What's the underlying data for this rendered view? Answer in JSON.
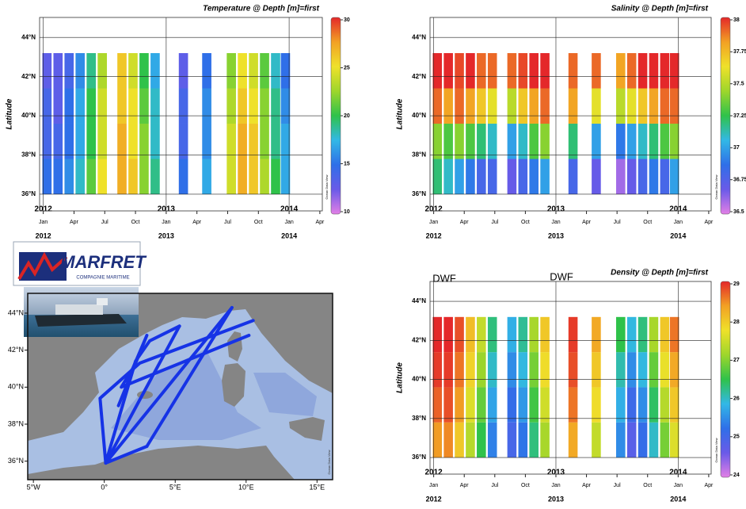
{
  "logo": {
    "name": "MARFRET",
    "tagline": "COMPAGNIE MARITIME"
  },
  "chart_data": [
    {
      "type": "heatmap",
      "title": "Temperature @ Depth [m]=first",
      "y_label": "Latitude",
      "watermark": "Ocean Data View",
      "xlim": [
        2011.97,
        2014.27
      ],
      "ylim": [
        35.15,
        45.02
      ],
      "grid": true,
      "xticks": [
        {
          "value": 2012,
          "label": "Jan"
        },
        {
          "value": 2012.25,
          "label": "Apr"
        },
        {
          "value": 2012.5,
          "label": "Jul"
        },
        {
          "value": 2012.75,
          "label": "Oct"
        },
        {
          "value": 2013,
          "label": "Jan"
        },
        {
          "value": 2013.25,
          "label": "Apr"
        },
        {
          "value": 2013.5,
          "label": "Jul"
        },
        {
          "value": 2013.75,
          "label": "Oct"
        },
        {
          "value": 2014,
          "label": "Jan"
        },
        {
          "value": 2014.25,
          "label": "Apr"
        }
      ],
      "year_ticks": [
        2012,
        2013,
        2014
      ],
      "yticks": [
        {
          "value": 36,
          "label": "36°N"
        },
        {
          "value": 38,
          "label": "38°N"
        },
        {
          "value": 40,
          "label": "40°N"
        },
        {
          "value": 42,
          "label": "42°N"
        },
        {
          "value": 44,
          "label": "44°N"
        }
      ],
      "colorbar_lim": [
        10,
        30
      ],
      "colorbar_ticks": [
        10,
        15,
        20,
        25,
        30
      ],
      "colormap": [
        "#e27fe6",
        "#6a5ae8",
        "#2f6fe8",
        "#32b8e6",
        "#2fc24a",
        "#9ed62b",
        "#efe12a",
        "#f2a124",
        "#e4282a"
      ],
      "x": [
        2012.03,
        2012.12,
        2012.21,
        2012.3,
        2012.39,
        2012.48,
        2012.64,
        2012.73,
        2012.82,
        2012.91,
        2013.14,
        2013.33,
        2013.53,
        2013.62,
        2013.71,
        2013.8,
        2013.89,
        2013.97
      ],
      "y": [
        36.9,
        38.7,
        40.5,
        42.3
      ],
      "values": [
        [
          15,
          14,
          14,
          13
        ],
        [
          15,
          14,
          13,
          13
        ],
        [
          16,
          15,
          15,
          14
        ],
        [
          18,
          17,
          17,
          16
        ],
        [
          21,
          20,
          20,
          19
        ],
        [
          25,
          24,
          24,
          23
        ],
        [
          27,
          27,
          26,
          26
        ],
        [
          26,
          25,
          25,
          24
        ],
        [
          22,
          22,
          21,
          20
        ],
        [
          19,
          18,
          18,
          17
        ],
        [
          15,
          14,
          14,
          13
        ],
        [
          17,
          16,
          16,
          15
        ],
        [
          24,
          24,
          23,
          22
        ],
        [
          27,
          27,
          26,
          25
        ],
        [
          26,
          26,
          25,
          24
        ],
        [
          23,
          22,
          22,
          21
        ],
        [
          20,
          19,
          19,
          18
        ],
        [
          17,
          17,
          16,
          15
        ]
      ]
    },
    {
      "type": "heatmap",
      "title": "Salinity @ Depth [m]=first",
      "y_label": "Latitude",
      "watermark": "Ocean Data View",
      "xlim": [
        2011.97,
        2014.27
      ],
      "ylim": [
        35.15,
        45.02
      ],
      "grid": true,
      "xticks": [
        {
          "value": 2012,
          "label": "Jan"
        },
        {
          "value": 2012.25,
          "label": "Apr"
        },
        {
          "value": 2012.5,
          "label": "Jul"
        },
        {
          "value": 2012.75,
          "label": "Oct"
        },
        {
          "value": 2013,
          "label": "Jan"
        },
        {
          "value": 2013.25,
          "label": "Apr"
        },
        {
          "value": 2013.5,
          "label": "Jul"
        },
        {
          "value": 2013.75,
          "label": "Oct"
        },
        {
          "value": 2014,
          "label": "Jan"
        },
        {
          "value": 2014.25,
          "label": "Apr"
        }
      ],
      "year_ticks": [
        2012,
        2013,
        2014
      ],
      "yticks": [
        {
          "value": 36,
          "label": "36°N"
        },
        {
          "value": 38,
          "label": "38°N"
        },
        {
          "value": 40,
          "label": "40°N"
        },
        {
          "value": 42,
          "label": "42°N"
        },
        {
          "value": 44,
          "label": "44°N"
        }
      ],
      "colorbar_lim": [
        36.5,
        38
      ],
      "colorbar_ticks": [
        36.5,
        36.75,
        37,
        37.25,
        37.5,
        37.75,
        38
      ],
      "colormap": [
        "#e27fe6",
        "#6a5ae8",
        "#2f6fe8",
        "#32b8e6",
        "#2fc24a",
        "#9ed62b",
        "#efe12a",
        "#f2a124",
        "#e4282a"
      ],
      "x": [
        2012.03,
        2012.12,
        2012.21,
        2012.3,
        2012.39,
        2012.48,
        2012.64,
        2012.73,
        2012.82,
        2012.91,
        2013.14,
        2013.33,
        2013.53,
        2013.62,
        2013.71,
        2013.8,
        2013.89,
        2013.97
      ],
      "y": [
        36.9,
        38.7,
        40.5,
        42.3
      ],
      "values": [
        [
          37.2,
          37.4,
          37.9,
          38.0
        ],
        [
          37.1,
          37.3,
          37.8,
          38.0
        ],
        [
          37.0,
          37.4,
          37.9,
          37.95
        ],
        [
          36.9,
          37.3,
          37.8,
          38.0
        ],
        [
          36.8,
          37.2,
          37.7,
          37.9
        ],
        [
          36.8,
          37.1,
          37.6,
          37.9
        ],
        [
          36.7,
          37.0,
          37.5,
          37.9
        ],
        [
          36.8,
          37.1,
          37.7,
          37.95
        ],
        [
          36.9,
          37.3,
          37.8,
          38.0
        ],
        [
          37.0,
          37.4,
          37.9,
          38.0
        ],
        [
          36.8,
          37.2,
          37.8,
          37.9
        ],
        [
          36.7,
          37.0,
          37.6,
          37.9
        ],
        [
          36.6,
          36.9,
          37.5,
          37.8
        ],
        [
          36.7,
          37.0,
          37.6,
          37.9
        ],
        [
          36.8,
          37.1,
          37.7,
          38.0
        ],
        [
          36.9,
          37.2,
          37.8,
          38.0
        ],
        [
          36.8,
          37.3,
          37.9,
          38.0
        ],
        [
          37.0,
          37.4,
          37.9,
          38.0
        ]
      ]
    },
    {
      "type": "heatmap",
      "title": "Density @ Depth [m]=first",
      "y_label": "Latitude",
      "watermark": "Ocean Data View",
      "annotations": [
        "DWF",
        "DWF"
      ],
      "xlim": [
        2011.97,
        2014.27
      ],
      "ylim": [
        35.15,
        45.02
      ],
      "grid": true,
      "xticks": [
        {
          "value": 2012,
          "label": "Jan"
        },
        {
          "value": 2012.25,
          "label": "Apr"
        },
        {
          "value": 2012.5,
          "label": "Jul"
        },
        {
          "value": 2012.75,
          "label": "Oct"
        },
        {
          "value": 2013,
          "label": "Jan"
        },
        {
          "value": 2013.25,
          "label": "Apr"
        },
        {
          "value": 2013.5,
          "label": "Jul"
        },
        {
          "value": 2013.75,
          "label": "Oct"
        },
        {
          "value": 2014,
          "label": "Jan"
        },
        {
          "value": 2014.25,
          "label": "Apr"
        }
      ],
      "year_ticks": [
        2012,
        2013,
        2014
      ],
      "yticks": [
        {
          "value": 36,
          "label": "36°N"
        },
        {
          "value": 38,
          "label": "38°N"
        },
        {
          "value": 40,
          "label": "40°N"
        },
        {
          "value": 42,
          "label": "42°N"
        },
        {
          "value": 44,
          "label": "44°N"
        }
      ],
      "colorbar_lim": [
        24,
        29
      ],
      "colorbar_ticks": [
        24,
        25,
        26,
        27,
        28,
        29
      ],
      "colormap": [
        "#e27fe6",
        "#6a5ae8",
        "#2f6fe8",
        "#32b8e6",
        "#2fc24a",
        "#9ed62b",
        "#efe12a",
        "#f2a124",
        "#e4282a"
      ],
      "x": [
        2012.03,
        2012.12,
        2012.21,
        2012.3,
        2012.39,
        2012.48,
        2012.64,
        2012.73,
        2012.82,
        2012.91,
        2013.14,
        2013.33,
        2013.53,
        2013.62,
        2013.71,
        2013.8,
        2013.89,
        2013.97
      ],
      "y": [
        36.9,
        38.7,
        40.5,
        42.3
      ],
      "values": [
        [
          28.4,
          28.7,
          28.9,
          29.0
        ],
        [
          28.5,
          28.8,
          28.9,
          29.0
        ],
        [
          28.0,
          28.4,
          28.6,
          28.8
        ],
        [
          27.3,
          27.6,
          27.9,
          28.1
        ],
        [
          26.5,
          26.8,
          27.1,
          27.4
        ],
        [
          25.4,
          25.7,
          26.0,
          26.3
        ],
        [
          25.0,
          25.2,
          25.5,
          25.8
        ],
        [
          25.3,
          25.6,
          25.9,
          26.2
        ],
        [
          26.3,
          26.6,
          26.9,
          27.2
        ],
        [
          27.2,
          27.5,
          27.8,
          28.0
        ],
        [
          28.3,
          28.6,
          28.8,
          28.9
        ],
        [
          27.4,
          27.8,
          28.0,
          28.3
        ],
        [
          25.5,
          25.8,
          26.1,
          26.5
        ],
        [
          24.8,
          25.1,
          25.5,
          25.9
        ],
        [
          25.2,
          25.5,
          25.9,
          26.3
        ],
        [
          26.0,
          26.4,
          26.8,
          27.2
        ],
        [
          26.9,
          27.3,
          27.7,
          28.0
        ],
        [
          27.6,
          28.0,
          28.3,
          28.6
        ]
      ]
    },
    {
      "type": "map",
      "watermark": "Ocean Data View",
      "color": "#1633e6",
      "xlim": [
        -5.4,
        16.1
      ],
      "ylim": [
        35.0,
        45.07
      ],
      "xticks": [
        {
          "value": -5,
          "label": "5°W"
        },
        {
          "value": 0,
          "label": "0°"
        },
        {
          "value": 5,
          "label": "5°E"
        },
        {
          "value": 10,
          "label": "10°E"
        },
        {
          "value": 15,
          "label": "15°E"
        }
      ],
      "yticks": [
        {
          "value": 36,
          "label": "36°N"
        },
        {
          "value": 38,
          "label": "38°N"
        },
        {
          "value": 40,
          "label": "40°N"
        },
        {
          "value": 42,
          "label": "42°N"
        },
        {
          "value": 44,
          "label": "44°N"
        }
      ],
      "routes": [
        {
          "lon": [
            0.1,
            5.3
          ],
          "lat": [
            35.9,
            43.3
          ]
        },
        {
          "lon": [
            0.1,
            9.0
          ],
          "lat": [
            35.9,
            44.3
          ]
        },
        {
          "lon": [
            0.1,
            2.2,
            3.2,
            5.3
          ],
          "lat": [
            35.9,
            41.4,
            42.5,
            43.3
          ]
        },
        {
          "lon": [
            3.0,
            9.0
          ],
          "lat": [
            36.8,
            44.3
          ]
        },
        {
          "lon": [
            3.0,
            0.1,
            -0.3,
            2.5,
            10.5
          ],
          "lat": [
            36.8,
            35.9,
            39.4,
            41.3,
            43.6
          ]
        },
        {
          "lon": [
            1.0,
            3.0,
            2.0,
            1.2,
            2.8,
            10.2
          ],
          "lat": [
            39.0,
            42.8,
            41.0,
            40.0,
            40.5,
            42.8
          ]
        }
      ]
    }
  ]
}
